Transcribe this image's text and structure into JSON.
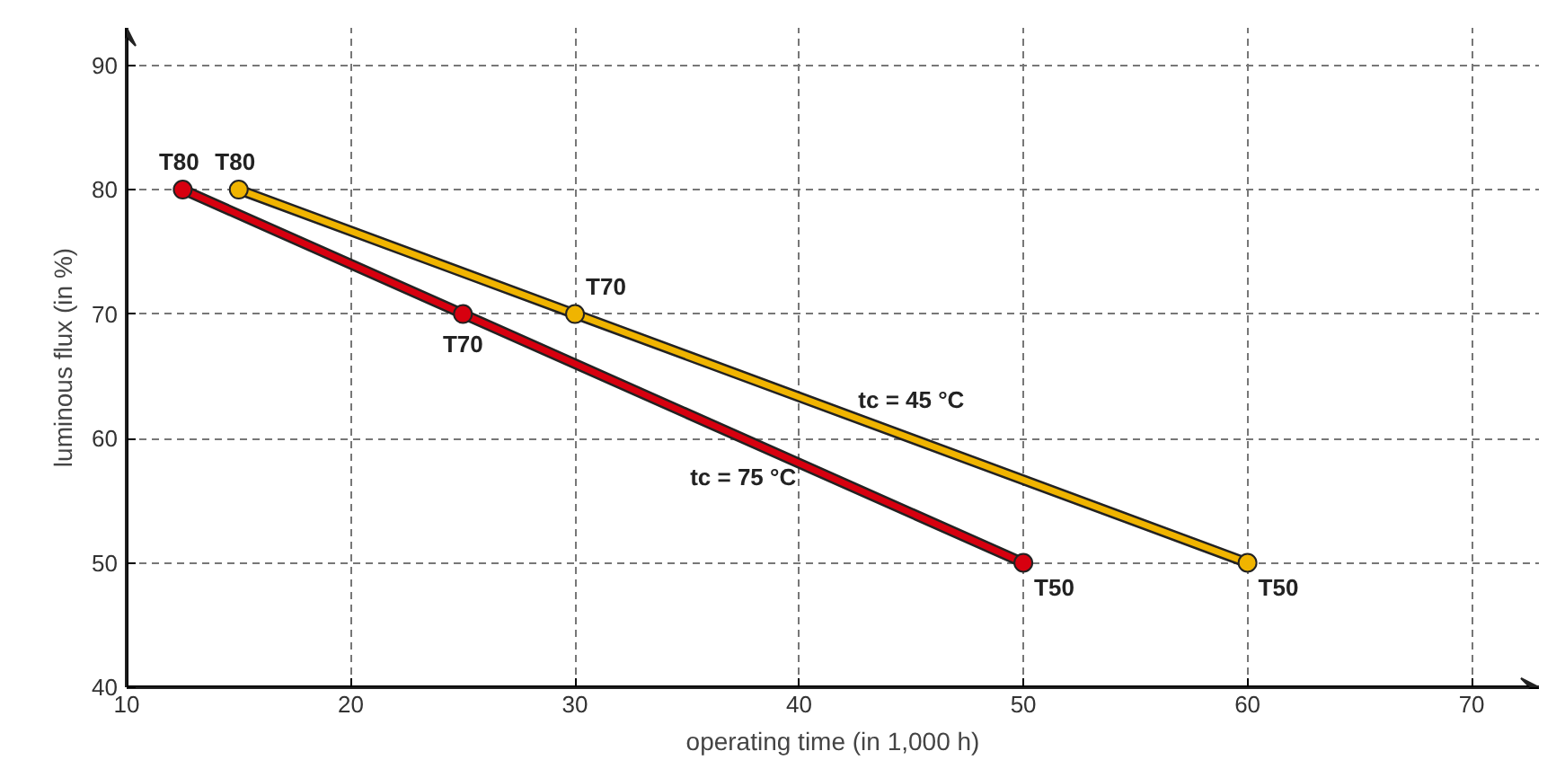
{
  "chart_data": {
    "type": "line",
    "xlabel": "operating time (in 1,000 h)",
    "ylabel": "luminous flux (in %)",
    "xlim": [
      10,
      73
    ],
    "ylim": [
      40,
      93
    ],
    "xticks": [
      10,
      20,
      30,
      40,
      50,
      60,
      70
    ],
    "yticks": [
      40,
      50,
      60,
      70,
      80,
      90
    ],
    "grid": true,
    "marker": "circle",
    "line_style": "solid",
    "series": [
      {
        "name": "tc = 75 °C",
        "color": "#d7000f",
        "x": [
          12.5,
          25,
          50
        ],
        "values": [
          80,
          70,
          50
        ],
        "value_labels": [
          "T80",
          "T70",
          "T50"
        ]
      },
      {
        "name": "tc = 45 °C",
        "color": "#f0b400",
        "x": [
          15,
          30,
          60
        ],
        "values": [
          80,
          70,
          50
        ],
        "value_labels": [
          "T80",
          "T70",
          "T50"
        ]
      }
    ]
  }
}
